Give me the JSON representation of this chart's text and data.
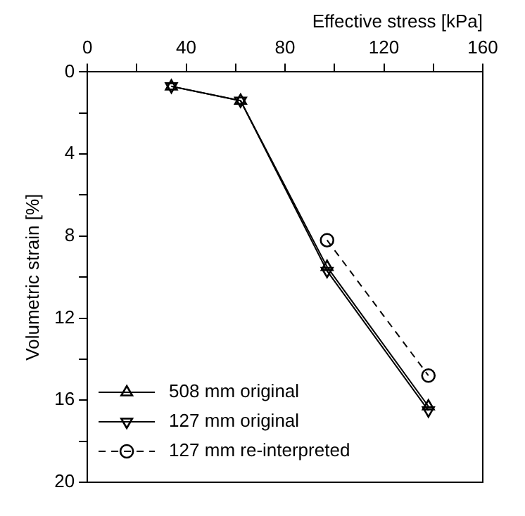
{
  "chart_data": {
    "type": "line",
    "xlabel": "Effective stress [kPa]",
    "ylabel": "Volumetric strain [%]",
    "xlim": [
      0,
      160
    ],
    "xticks": [
      0,
      {
        "value": 20,
        "label": null
      },
      40,
      {
        "value": 60,
        "label": null
      },
      80,
      {
        "value": 100,
        "label": null
      },
      120,
      {
        "value": 140,
        "label": null
      },
      160
    ],
    "ylim": [
      20,
      0
    ],
    "yticks": [
      0,
      {
        "value": 2,
        "label": null
      },
      4,
      {
        "value": 6,
        "label": null
      },
      8,
      {
        "value": 10,
        "label": null
      },
      12,
      {
        "value": 14,
        "label": null
      },
      16,
      {
        "value": 18,
        "label": null
      },
      20
    ],
    "grid": false,
    "legend": "bottom left",
    "series": [
      {
        "name": "508 mm original",
        "color": "#000000",
        "marker": "triangle",
        "line_style": "solid",
        "x": [
          34,
          62,
          97,
          138
        ],
        "values": [
          0.7,
          1.4,
          9.5,
          16.3
        ]
      },
      {
        "name": "127 mm original",
        "color": "#000000",
        "marker": "triangle-down",
        "line_style": "solid",
        "x": [
          34,
          62,
          97,
          138
        ],
        "values": [
          0.7,
          1.4,
          9.7,
          16.5
        ]
      },
      {
        "name": "127 mm re-interpreted",
        "color": "#000000",
        "marker": "circle",
        "line_style": "dashed",
        "x": [
          97,
          138
        ],
        "values": [
          8.2,
          14.8
        ]
      }
    ]
  }
}
